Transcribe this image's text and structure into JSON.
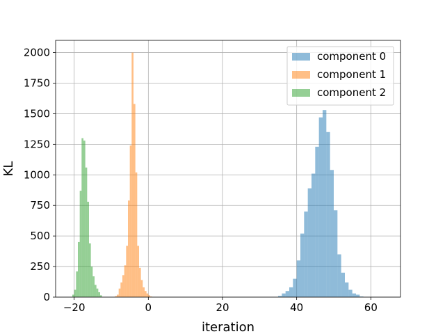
{
  "chart_data": {
    "type": "histogram",
    "title": "",
    "xlabel": "iteration",
    "ylabel": "KL",
    "xlim": [
      -25,
      68
    ],
    "ylim": [
      0,
      2100
    ],
    "xticks": [
      -20,
      0,
      20,
      40,
      60
    ],
    "yticks": [
      0,
      250,
      500,
      750,
      1000,
      1250,
      1500,
      1750,
      2000
    ],
    "grid": true,
    "legend_position": "top-right",
    "bin_width": 1.0,
    "series": [
      {
        "name": "component 0",
        "color": "#1f77b4",
        "bins": [
          [
            35,
            10
          ],
          [
            36,
            30
          ],
          [
            37,
            50
          ],
          [
            38,
            80
          ],
          [
            39,
            150
          ],
          [
            40,
            300
          ],
          [
            41,
            520
          ],
          [
            42,
            700
          ],
          [
            43,
            890
          ],
          [
            44,
            1010
          ],
          [
            45,
            1230
          ],
          [
            46,
            1470
          ],
          [
            47,
            1530
          ],
          [
            48,
            1350
          ],
          [
            49,
            1040
          ],
          [
            50,
            710
          ],
          [
            51,
            350
          ],
          [
            52,
            200
          ],
          [
            53,
            120
          ],
          [
            54,
            60
          ],
          [
            55,
            30
          ],
          [
            56,
            20
          ],
          [
            57,
            5
          ]
        ]
      },
      {
        "name": "component 1",
        "color": "#ff7f0e",
        "bins": [
          [
            -9.0,
            8
          ],
          [
            -8.5,
            20
          ],
          [
            -8.0,
            70
          ],
          [
            -7.5,
            120
          ],
          [
            -7.0,
            180
          ],
          [
            -6.5,
            260
          ],
          [
            -6.0,
            420
          ],
          [
            -5.5,
            790
          ],
          [
            -5.0,
            1240
          ],
          [
            -4.5,
            2000
          ],
          [
            -4.0,
            1580
          ],
          [
            -3.5,
            1020
          ],
          [
            -3.0,
            420
          ],
          [
            -2.5,
            240
          ],
          [
            -2.0,
            140
          ],
          [
            -1.5,
            80
          ],
          [
            -1.0,
            50
          ],
          [
            -0.5,
            30
          ],
          [
            0.0,
            15
          ],
          [
            0.5,
            5
          ]
        ]
      },
      {
        "name": "component 2",
        "color": "#2ca02c",
        "bins": [
          [
            -20.5,
            20
          ],
          [
            -20.0,
            60
          ],
          [
            -19.5,
            210
          ],
          [
            -19.0,
            450
          ],
          [
            -18.5,
            870
          ],
          [
            -18.0,
            1300
          ],
          [
            -17.5,
            1280
          ],
          [
            -17.0,
            1060
          ],
          [
            -16.5,
            780
          ],
          [
            -16.0,
            440
          ],
          [
            -15.5,
            250
          ],
          [
            -15.0,
            170
          ],
          [
            -14.5,
            100
          ],
          [
            -14.0,
            70
          ],
          [
            -13.5,
            40
          ],
          [
            -13.0,
            15
          ]
        ]
      }
    ]
  }
}
